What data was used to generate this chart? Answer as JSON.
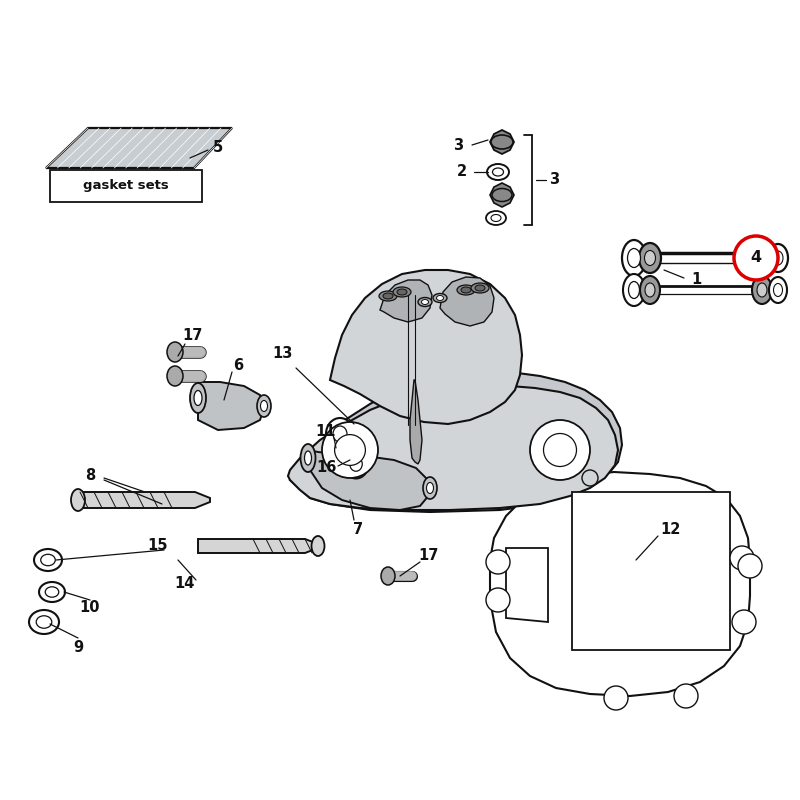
{
  "bg": "#ffffff",
  "lc": "#111111",
  "fc_body": "#d2d5d8",
  "fc_dark": "#999999",
  "fc_light": "#e8eaec",
  "fc_gasket": "#c8cdd2",
  "red": "#dd0000",
  "gasket_text": "gasket sets",
  "lw": 1.5,
  "label_fs": 10.5
}
